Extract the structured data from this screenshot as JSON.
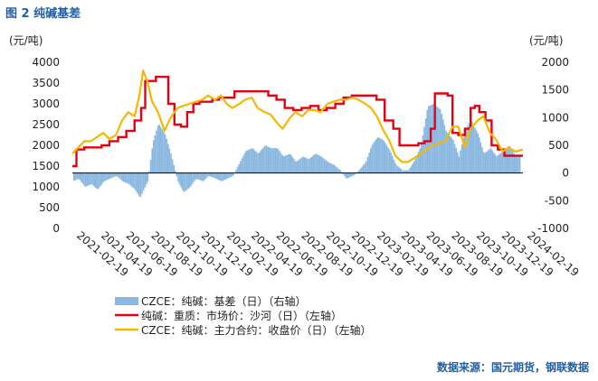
{
  "header": {
    "title": "图 2  纯碱基差"
  },
  "footer": {
    "source": "数据来源：国元期货，钢联数据"
  },
  "colors": {
    "basis": "#8bb8e0",
    "spot": "#e60012",
    "futures": "#f5b800"
  },
  "chart_data": {
    "type": "line",
    "left_unit": "(元/吨)",
    "right_unit": "(元/吨)",
    "left_ylim": [
      0,
      4000
    ],
    "right_ylim": [
      -1000,
      2000
    ],
    "left_ticks": [
      "0",
      "500",
      "1000",
      "1500",
      "2000",
      "2500",
      "3000",
      "3500",
      "4000"
    ],
    "right_ticks": [
      "-1000",
      "-500",
      "0",
      "500",
      "1000",
      "1500",
      "2000"
    ],
    "xlim": [
      "2021-02-19",
      "2024-02-19"
    ],
    "x_ticks": [
      "2021-02-19",
      "2021-04-19",
      "2021-06-19",
      "2021-08-19",
      "2021-10-19",
      "2021-12-19",
      "2022-02-19",
      "2022-04-19",
      "2022-06-19",
      "2022-08-19",
      "2022-10-19",
      "2022-12-19",
      "2023-02-19",
      "2023-04-19",
      "2023-06-19",
      "2023-08-19",
      "2023-10-19",
      "2023-12-19",
      "2024-02-19"
    ],
    "grid": false,
    "legend_position": "bottom",
    "series": [
      {
        "name": "CZCE：纯碱：基差（日）（右轴）",
        "kind": "bar",
        "axis": "right",
        "x": [
          "2021-02-19",
          "2021-03-05",
          "2021-03-20",
          "2021-04-05",
          "2021-04-20",
          "2021-05-05",
          "2021-05-20",
          "2021-06-05",
          "2021-06-20",
          "2021-07-05",
          "2021-07-20",
          "2021-08-01",
          "2021-08-10",
          "2021-08-20",
          "2021-09-01",
          "2021-09-15",
          "2021-10-01",
          "2021-10-15",
          "2021-11-01",
          "2021-11-15",
          "2021-12-01",
          "2021-12-15",
          "2022-01-01",
          "2022-01-15",
          "2022-02-01",
          "2022-02-15",
          "2022-03-01",
          "2022-03-15",
          "2022-04-01",
          "2022-04-15",
          "2022-05-01",
          "2022-05-15",
          "2022-06-01",
          "2022-06-15",
          "2022-07-01",
          "2022-07-15",
          "2022-08-01",
          "2022-08-15",
          "2022-09-01",
          "2022-09-15",
          "2022-10-01",
          "2022-10-15",
          "2022-11-01",
          "2022-11-15",
          "2022-12-01",
          "2022-12-15",
          "2023-01-01",
          "2023-01-15",
          "2023-02-01",
          "2023-02-15",
          "2023-03-01",
          "2023-03-15",
          "2023-04-01",
          "2023-04-15",
          "2023-05-01",
          "2023-05-15",
          "2023-06-01",
          "2023-06-15",
          "2023-07-01",
          "2023-07-15",
          "2023-08-01",
          "2023-08-15",
          "2023-09-01",
          "2023-09-15",
          "2023-10-01",
          "2023-10-15",
          "2023-11-01",
          "2023-11-15",
          "2023-12-01",
          "2023-12-15",
          "2024-01-01",
          "2024-01-15",
          "2024-02-01"
        ],
        "values": [
          -150,
          -100,
          -250,
          -200,
          -300,
          -150,
          -100,
          -50,
          -150,
          -200,
          -300,
          -450,
          -300,
          -150,
          550,
          900,
          700,
          350,
          -150,
          -350,
          -250,
          -100,
          -150,
          -50,
          -100,
          -150,
          -100,
          -50,
          200,
          400,
          450,
          350,
          500,
          450,
          450,
          300,
          350,
          200,
          300,
          250,
          350,
          300,
          200,
          150,
          50,
          -100,
          -50,
          50,
          200,
          500,
          650,
          600,
          400,
          150,
          50,
          50,
          250,
          500,
          1200,
          1250,
          1150,
          750,
          600,
          300,
          800,
          950,
          700,
          350,
          450,
          300,
          400,
          500,
          300
        ]
      },
      {
        "name": "纯碱：重质：市场价：沙河（日）（左轴）",
        "kind": "line",
        "axis": "left",
        "x": [
          "2021-02-19",
          "2021-03-01",
          "2021-03-20",
          "2021-04-10",
          "2021-05-01",
          "2021-05-20",
          "2021-06-10",
          "2021-06-30",
          "2021-07-20",
          "2021-08-05",
          "2021-08-15",
          "2021-08-25",
          "2021-09-10",
          "2021-09-25",
          "2021-10-10",
          "2021-10-25",
          "2021-11-10",
          "2021-11-25",
          "2021-12-10",
          "2021-12-25",
          "2022-01-10",
          "2022-01-25",
          "2022-02-10",
          "2022-03-01",
          "2022-03-20",
          "2022-04-10",
          "2022-04-30",
          "2022-05-20",
          "2022-06-10",
          "2022-06-30",
          "2022-07-20",
          "2022-08-10",
          "2022-08-30",
          "2022-09-20",
          "2022-10-10",
          "2022-10-30",
          "2022-11-20",
          "2022-12-10",
          "2022-12-30",
          "2023-01-20",
          "2023-02-10",
          "2023-02-28",
          "2023-03-20",
          "2023-04-10",
          "2023-04-25",
          "2023-05-10",
          "2023-05-25",
          "2023-06-10",
          "2023-06-25",
          "2023-07-10",
          "2023-07-20",
          "2023-07-30",
          "2023-08-10",
          "2023-08-20",
          "2023-09-01",
          "2023-09-15",
          "2023-10-01",
          "2023-10-15",
          "2023-10-25",
          "2023-11-05",
          "2023-11-20",
          "2023-12-05",
          "2023-12-20",
          "2024-01-05",
          "2024-01-20",
          "2024-02-05",
          "2024-02-19"
        ],
        "values": [
          1500,
          1900,
          1950,
          1950,
          2000,
          2100,
          2200,
          2350,
          2600,
          2900,
          3550,
          3550,
          3650,
          3650,
          3000,
          2500,
          2450,
          2800,
          3000,
          3050,
          3050,
          3100,
          3150,
          3150,
          3300,
          3300,
          3300,
          3300,
          3200,
          3100,
          2900,
          2850,
          2900,
          2950,
          2850,
          2900,
          3000,
          3150,
          3200,
          3200,
          3200,
          3100,
          2600,
          2400,
          2000,
          2000,
          2000,
          2050,
          2100,
          2400,
          3250,
          3250,
          3250,
          3200,
          2300,
          2250,
          2400,
          2900,
          2950,
          2800,
          2600,
          2000,
          1900,
          1750,
          1750,
          1750,
          1750
        ]
      },
      {
        "name": "CZCE：纯碱：主力合约：收盘价（日）（左轴）",
        "kind": "line",
        "axis": "left",
        "x": [
          "2021-02-19",
          "2021-03-05",
          "2021-03-20",
          "2021-04-05",
          "2021-04-20",
          "2021-05-05",
          "2021-05-20",
          "2021-06-05",
          "2021-06-20",
          "2021-07-05",
          "2021-07-20",
          "2021-08-01",
          "2021-08-10",
          "2021-08-20",
          "2021-09-01",
          "2021-09-15",
          "2021-10-01",
          "2021-10-15",
          "2021-11-01",
          "2021-11-15",
          "2021-12-01",
          "2021-12-15",
          "2022-01-01",
          "2022-01-15",
          "2022-02-01",
          "2022-02-15",
          "2022-03-01",
          "2022-03-15",
          "2022-04-01",
          "2022-04-15",
          "2022-05-01",
          "2022-05-15",
          "2022-06-01",
          "2022-06-15",
          "2022-07-01",
          "2022-07-15",
          "2022-08-01",
          "2022-08-15",
          "2022-09-01",
          "2022-09-15",
          "2022-10-01",
          "2022-10-15",
          "2022-11-01",
          "2022-11-15",
          "2022-12-01",
          "2022-12-15",
          "2023-01-01",
          "2023-01-15",
          "2023-02-01",
          "2023-02-15",
          "2023-03-01",
          "2023-03-15",
          "2023-04-01",
          "2023-04-15",
          "2023-05-01",
          "2023-05-15",
          "2023-06-01",
          "2023-06-15",
          "2023-07-01",
          "2023-07-15",
          "2023-08-01",
          "2023-08-15",
          "2023-09-01",
          "2023-09-15",
          "2023-10-01",
          "2023-10-15",
          "2023-11-01",
          "2023-11-15",
          "2023-12-01",
          "2023-12-15",
          "2024-01-01",
          "2024-01-15",
          "2024-02-01",
          "2024-02-19"
        ],
        "values": [
          1800,
          1950,
          2100,
          2100,
          2200,
          2300,
          2150,
          2250,
          2600,
          2800,
          2700,
          3200,
          3800,
          3550,
          3050,
          2800,
          2350,
          2650,
          2900,
          2950,
          3000,
          3050,
          3100,
          3200,
          3100,
          3200,
          3000,
          2900,
          3000,
          3100,
          3150,
          2900,
          2800,
          2750,
          2550,
          2400,
          2650,
          2800,
          2700,
          2850,
          2850,
          2800,
          3000,
          3050,
          3100,
          3100,
          3150,
          3100,
          3000,
          2900,
          2700,
          2400,
          2100,
          1750,
          1600,
          1600,
          1700,
          1800,
          1900,
          2000,
          2050,
          2100,
          2450,
          2450,
          1950,
          2400,
          2600,
          2700,
          2300,
          2150,
          1850,
          1950,
          1850,
          1900
        ]
      }
    ]
  }
}
